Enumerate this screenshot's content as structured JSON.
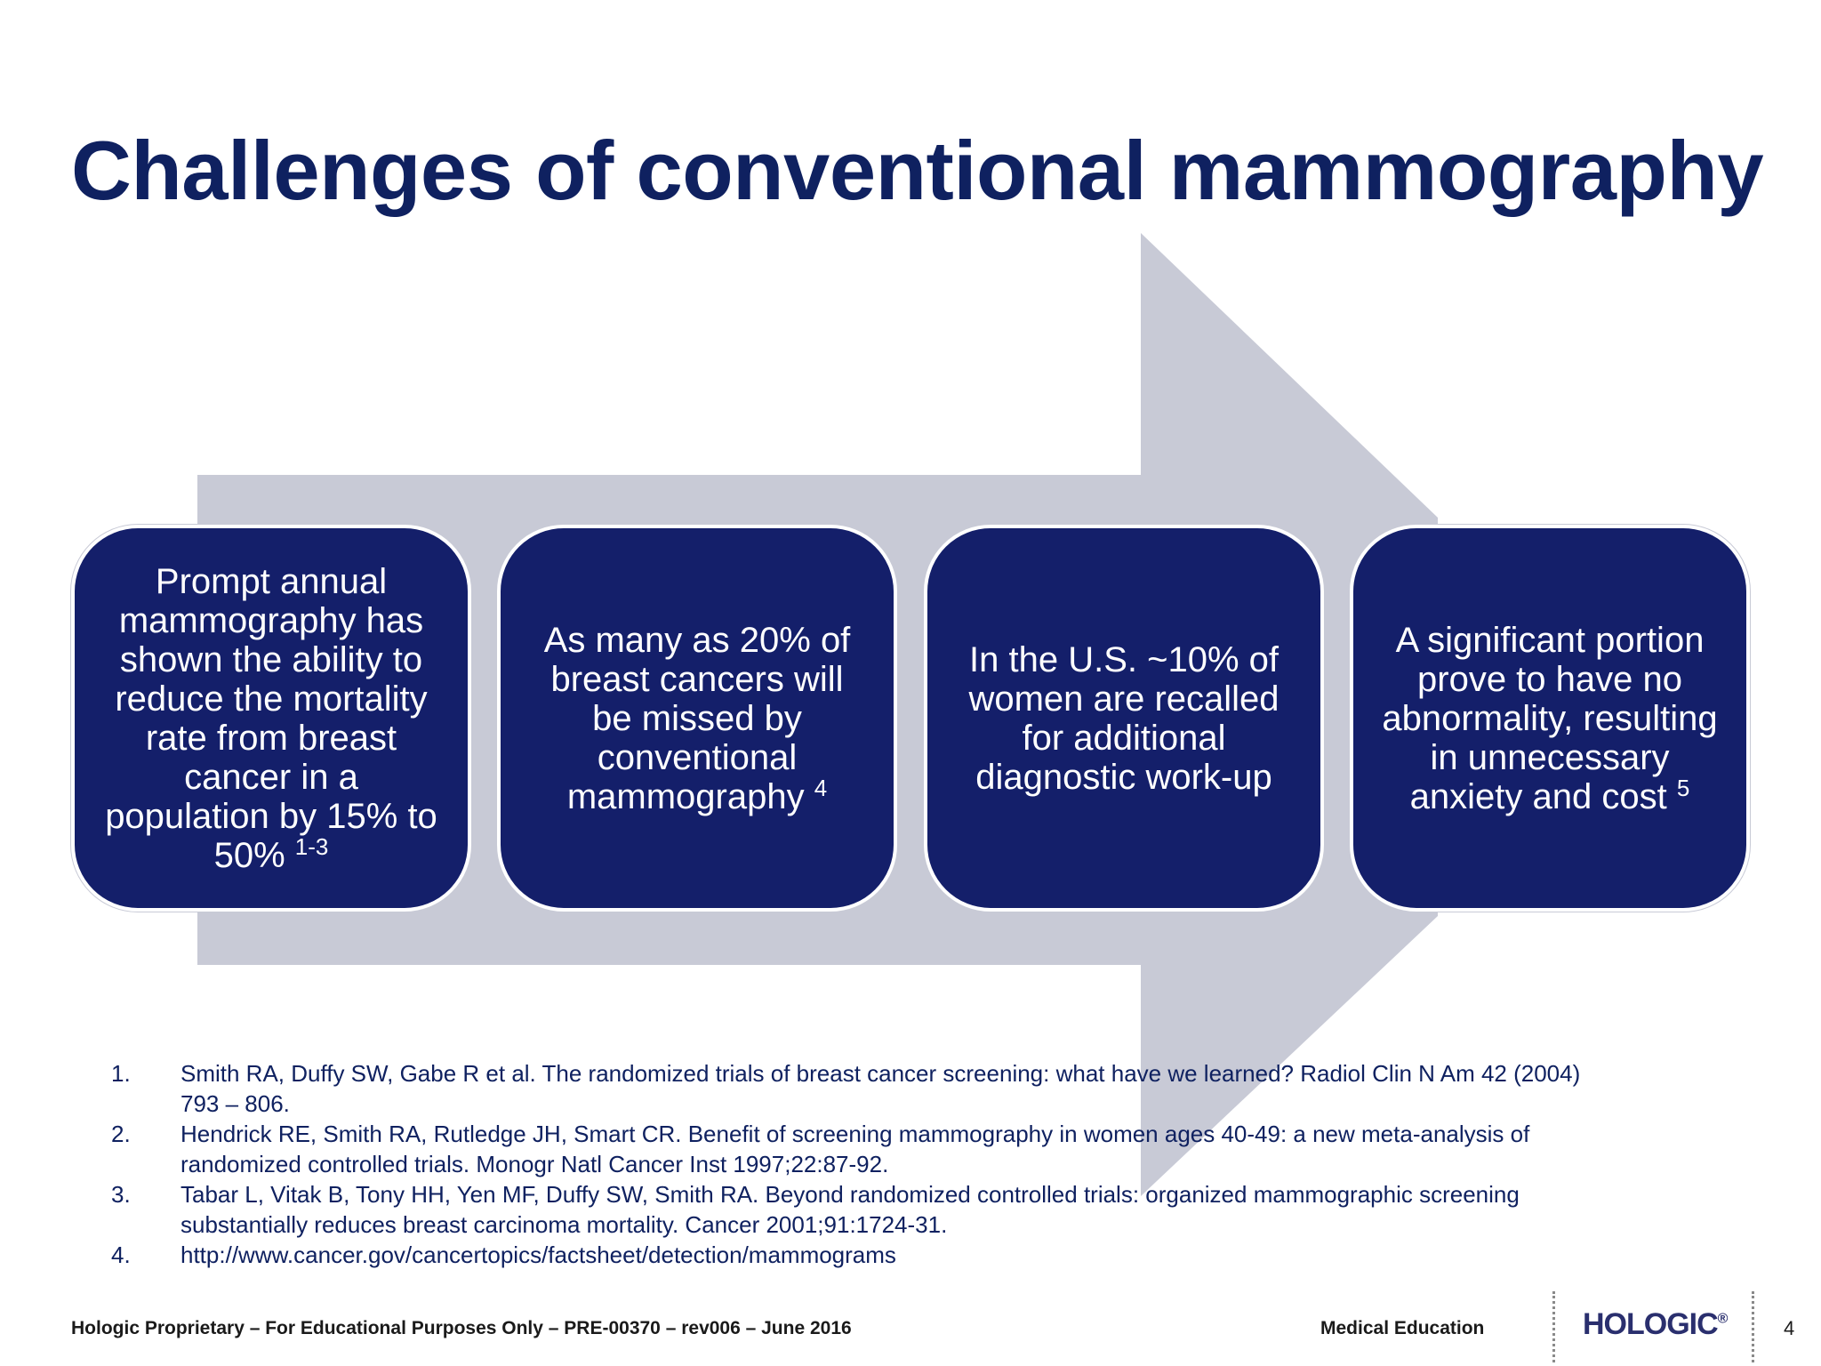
{
  "title": "Challenges of conventional mammography",
  "boxes": [
    {
      "text": "Prompt annual mammography has shown the ability to reduce the mortality rate from breast cancer in a population by 15% to 50%",
      "sup": "1-3"
    },
    {
      "text": "As many as 20% of breast cancers will be missed by conventional mammography",
      "sup": "4"
    },
    {
      "text": "In the U.S. ~10% of women are recalled for additional diagnostic work-up",
      "sup": ""
    },
    {
      "text": "A significant portion prove to have no abnormality, resulting in unnecessary anxiety and cost",
      "sup": "5"
    }
  ],
  "references": [
    {
      "num": "1.",
      "text": "Smith RA, Duffy SW, Gabe R et al. The randomized trials of breast cancer screening: what have we learned? Radiol Clin N Am 42 (2004) 793 – 806."
    },
    {
      "num": "2.",
      "text": "Hendrick RE, Smith RA, Rutledge JH, Smart CR. Benefit of screening mammography in women ages 40-49: a new meta-analysis of randomized controlled trials. Monogr Natl Cancer Inst 1997;22:87-92."
    },
    {
      "num": "3.",
      "text": "Tabar L, Vitak B, Tony HH, Yen MF, Duffy SW, Smith RA. Beyond randomized controlled trials: organized mammographic screening substantially reduces breast carcinoma mortality. Cancer 2001;91:1724-31."
    },
    {
      "num": "4.",
      "text": " http://www.cancer.gov/cancertopics/factsheet/detection/mammograms"
    }
  ],
  "footer": {
    "left": "Hologic Proprietary – For Educational Purposes Only – PRE-00370 – rev006 – June 2016",
    "mid": "Medical Education",
    "logo": "HOLOGIC",
    "logo_mark": "®",
    "page": "4"
  },
  "colors": {
    "title": "#0f2160",
    "box_fill": "#141f6a",
    "arrow": "#c8cad6"
  }
}
